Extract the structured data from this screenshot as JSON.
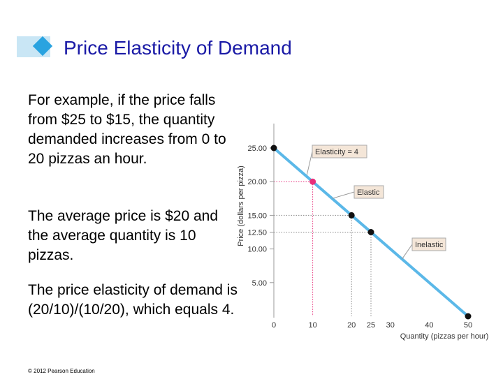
{
  "slide": {
    "title": "Price Elasticity of Demand",
    "paragraphs": [
      "For example, if the price falls from $25 to $15, the quantity demanded increases from 0 to 20 pizzas an hour.",
      "The average price is $20 and the average quantity is 10 pizzas.",
      "The price elasticity of demand is (20/10)/(10/20), which equals 4."
    ],
    "copyright": "© 2012 Pearson Education"
  },
  "chart_data": {
    "type": "line",
    "xlabel": "Quantity (pizzas per hour)",
    "ylabel": "Price (dollars per pizza)",
    "xlim": [
      0,
      50
    ],
    "ylim": [
      0,
      25
    ],
    "x_ticks": [
      "0",
      "10",
      "20",
      "25",
      "30",
      "40",
      "50"
    ],
    "x_tick_values": [
      0,
      10,
      20,
      25,
      30,
      40,
      50
    ],
    "y_ticks": [
      "5.00",
      "10.00",
      "12.50",
      "15.00",
      "20.00",
      "25.00"
    ],
    "y_tick_values": [
      5,
      10,
      12.5,
      15,
      20,
      25
    ],
    "series": [
      {
        "x": [
          0,
          50
        ],
        "y": [
          25,
          0
        ]
      }
    ],
    "points": [
      {
        "x": 0,
        "y": 25,
        "highlight": false
      },
      {
        "x": 10,
        "y": 20,
        "highlight": true
      },
      {
        "x": 20,
        "y": 15,
        "highlight": false
      },
      {
        "x": 25,
        "y": 12.5,
        "highlight": false
      },
      {
        "x": 50,
        "y": 0,
        "highlight": false
      }
    ],
    "annotations": [
      {
        "text": "Elasticity = 4"
      },
      {
        "text": "Elastic"
      },
      {
        "text": "Inelastic"
      }
    ],
    "colors": {
      "line": "#5bb8e8",
      "point": "#111111",
      "highlight": "#e8307a",
      "callout_bg": "#f4e6d8",
      "callout_border": "#aaaaaa"
    }
  }
}
